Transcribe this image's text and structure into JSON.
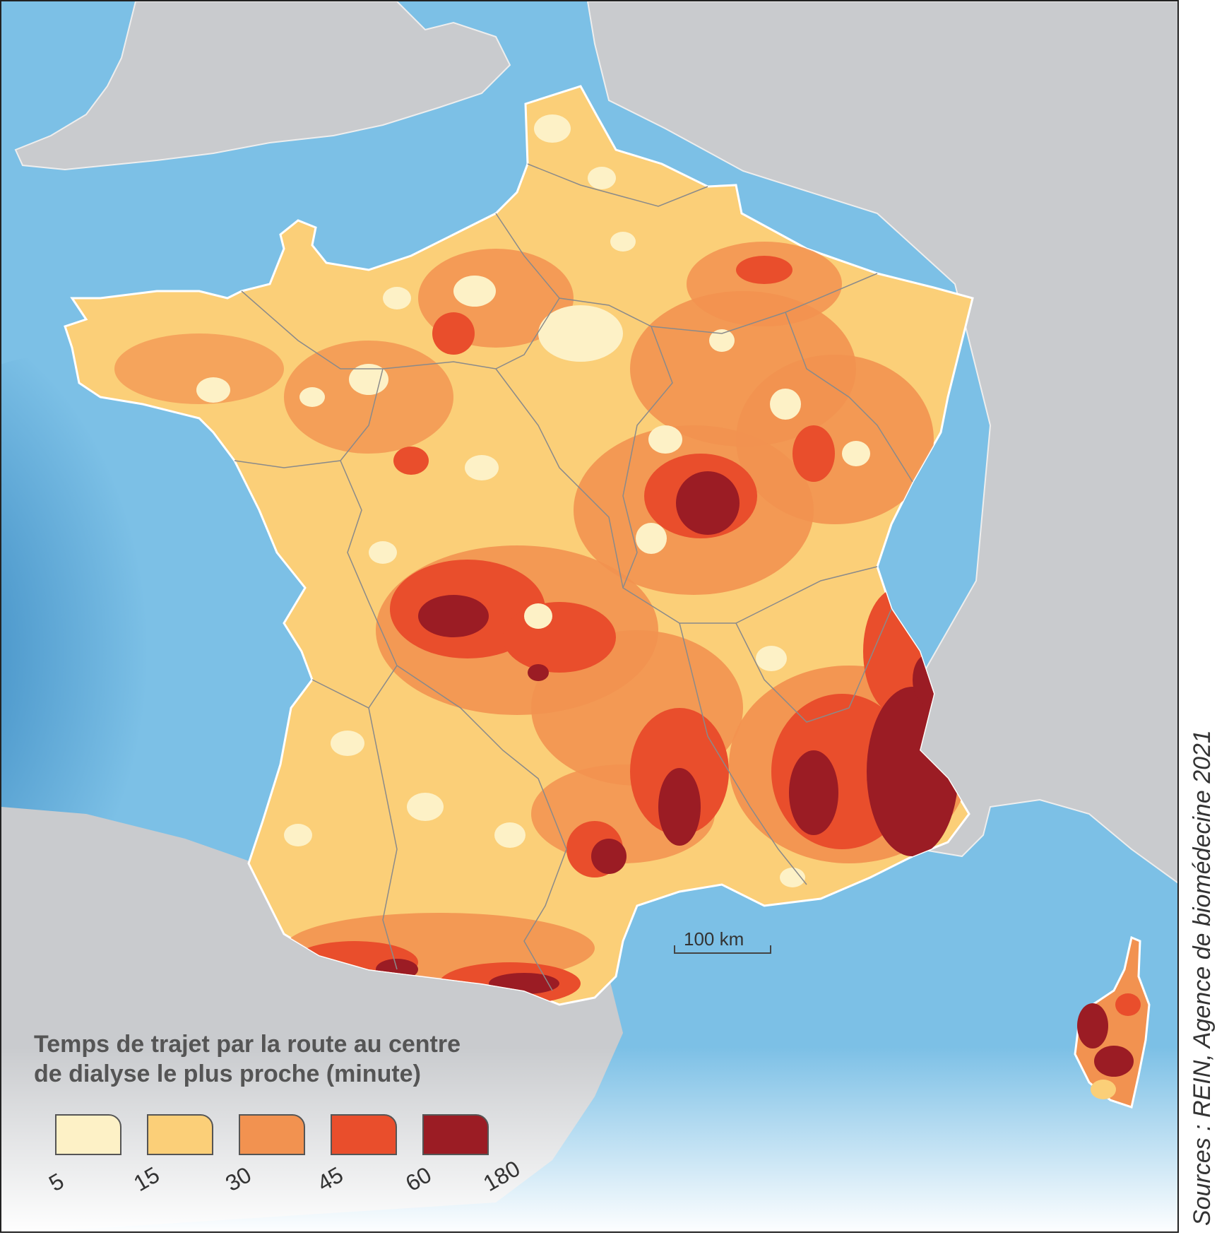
{
  "legend": {
    "title_line1": "Temps de trajet par la route au centre",
    "title_line2": "de dialyse le plus proche (minute)",
    "classes": [
      {
        "color": "#fdf1c6",
        "range": [
          5,
          15
        ]
      },
      {
        "color": "#fbcf78",
        "range": [
          15,
          30
        ]
      },
      {
        "color": "#f29250",
        "range": [
          30,
          45
        ]
      },
      {
        "color": "#e94e2c",
        "range": [
          45,
          60
        ]
      },
      {
        "color": "#9b1c24",
        "range": [
          60,
          180
        ]
      }
    ],
    "ticks": [
      "5",
      "15",
      "30",
      "45",
      "60",
      "180"
    ]
  },
  "scale": {
    "label": "100 km"
  },
  "source": "Sources : REIN, Agence de biomédecine 2021",
  "colors": {
    "sea": "#7cc0e6",
    "land_neighbor": "#c9cbce",
    "border_line": "#8a8a8a"
  }
}
